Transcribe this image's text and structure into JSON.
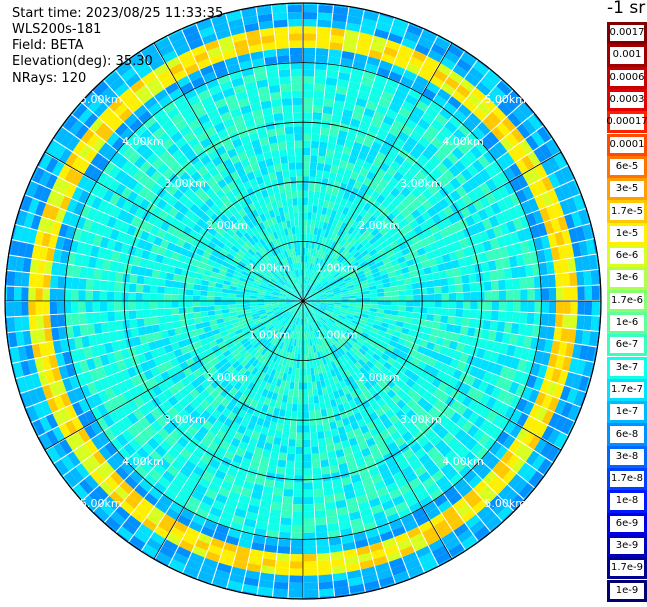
{
  "header": {
    "start_time": "Start time: 2023/08/25 11:33:35",
    "instrument": "WLS200s-181",
    "field": "Field: BETA",
    "elevation": "Elevation(deg): 35.30",
    "nrays": "NRays: 120"
  },
  "colorbar": {
    "title": "-1 sr",
    "entries": [
      {
        "label": "0.0017",
        "color": "#7f0000"
      },
      {
        "label": "0.001",
        "color": "#a00000"
      },
      {
        "label": "0.0006",
        "color": "#c40000"
      },
      {
        "label": "0.0003",
        "color": "#e20000"
      },
      {
        "label": "0.00017",
        "color": "#ff2000"
      },
      {
        "label": "0.0001",
        "color": "#ff4a00"
      },
      {
        "label": "6e-5",
        "color": "#ff7400"
      },
      {
        "label": "3e-5",
        "color": "#ff9e00"
      },
      {
        "label": "1.7e-5",
        "color": "#ffc800"
      },
      {
        "label": "1e-5",
        "color": "#fff000"
      },
      {
        "label": "6e-6",
        "color": "#d8ff20"
      },
      {
        "label": "3e-6",
        "color": "#b0ff48"
      },
      {
        "label": "1.7e-6",
        "color": "#88ff70"
      },
      {
        "label": "1e-6",
        "color": "#60ff98"
      },
      {
        "label": "6e-7",
        "color": "#38ffc0"
      },
      {
        "label": "3e-7",
        "color": "#10ffe8"
      },
      {
        "label": "1.7e-7",
        "color": "#00e0ff"
      },
      {
        "label": "1e-7",
        "color": "#00b8ff"
      },
      {
        "label": "6e-8",
        "color": "#0090ff"
      },
      {
        "label": "3e-8",
        "color": "#0068ff"
      },
      {
        "label": "1.7e-8",
        "color": "#0040ff"
      },
      {
        "label": "1e-8",
        "color": "#0018ff"
      },
      {
        "label": "6e-9",
        "color": "#0000e0"
      },
      {
        "label": "3e-9",
        "color": "#0000b8"
      },
      {
        "label": "1.7e-9",
        "color": "#000090"
      },
      {
        "label": "1e-9",
        "color": "#000070"
      }
    ]
  },
  "chart_data": {
    "type": "ppi-polar",
    "field": "BETA",
    "elevation_deg": 35.3,
    "n_rays": 120,
    "max_range_km": 5.0,
    "range_rings_km": [
      1.0,
      2.0,
      3.0,
      4.0,
      5.0
    ],
    "range_ring_labels": [
      "1.00km",
      "2.00km",
      "3.00km",
      "4.00km",
      "5.00km"
    ],
    "spoke_step_deg": 30,
    "color_scale": "log",
    "value_range": [
      1e-09,
      0.0017
    ],
    "approx_layers": [
      {
        "range_km": [
          0.0,
          4.0
        ],
        "level": "3e-7"
      },
      {
        "range_km": [
          4.3,
          4.6
        ],
        "level": "1e-5"
      },
      {
        "range_km": [
          4.6,
          5.0
        ],
        "level": "1e-7"
      }
    ]
  }
}
